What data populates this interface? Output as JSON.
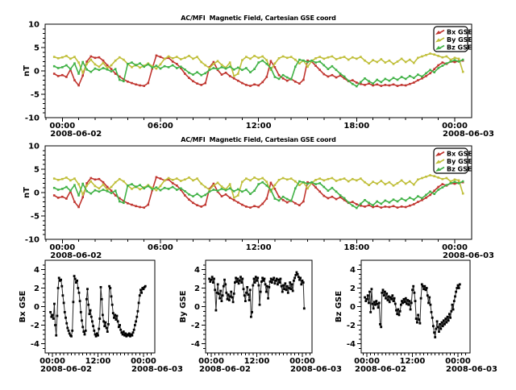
{
  "window": {
    "background": "#ffffff",
    "plot_background": "#ffffff",
    "axis_color": "#000000"
  },
  "chart_data": {
    "type": "line",
    "x_unit": "hours since 2008-06-02 00:00",
    "x_start_hours": -0.5,
    "x_step_hours": 0.25,
    "n_points": 101,
    "legend": [
      {
        "label": "Bx GSE",
        "color": "#c0352f",
        "marker": "arrow-icon"
      },
      {
        "label": "By GSE",
        "color": "#c0bf3a",
        "marker": "arrow-icon"
      },
      {
        "label": "Bz GSE",
        "color": "#41b247",
        "marker": "arrow-icon"
      }
    ],
    "series": [
      {
        "name": "Bx GSE",
        "color": "#c0352f",
        "values": [
          -0.6,
          -1.1,
          -0.9,
          -1.3,
          0.3,
          -2.0,
          -3.1,
          -1.0,
          2.0,
          3.1,
          2.8,
          2.9,
          2.2,
          1.2,
          0.4,
          -0.6,
          -1.2,
          -1.8,
          -2.3,
          -2.6,
          -2.9,
          -3.1,
          -3.2,
          -2.6,
          0.5,
          3.3,
          3.0,
          2.6,
          2.8,
          2.0,
          1.5,
          0.6,
          -0.6,
          -1.5,
          -2.2,
          -2.7,
          -3.0,
          -2.6,
          0.8,
          1.9,
          0.2,
          -0.8,
          -0.4,
          -1.1,
          -1.6,
          -2.1,
          -2.6,
          -3.0,
          -3.2,
          -2.9,
          -3.1,
          -2.4,
          -1.3,
          2.1,
          0.8,
          -0.9,
          -1.6,
          -2.1,
          -1.7,
          -2.3,
          -2.7,
          -1.9,
          2.2,
          2.0,
          1.1,
          0.2,
          -0.7,
          -1.2,
          -0.9,
          -1.4,
          -1.0,
          -1.6,
          -2.2,
          -2.0,
          -2.5,
          -2.8,
          -3.0,
          -2.7,
          -3.1,
          -2.9,
          -3.2,
          -3.0,
          -3.1,
          -2.9,
          -3.2,
          -3.0,
          -3.1,
          -2.8,
          -2.5,
          -2.0,
          -1.6,
          -1.1,
          -0.5,
          0.4,
          1.2,
          1.8,
          1.5,
          2.0,
          1.9,
          2.1,
          2.2
        ]
      },
      {
        "name": "By GSE",
        "color": "#c0bf3a",
        "values": [
          3.0,
          2.7,
          2.9,
          3.2,
          2.6,
          3.0,
          1.8,
          -0.4,
          1.5,
          2.4,
          1.4,
          0.9,
          1.7,
          0.6,
          1.2,
          2.2,
          2.9,
          2.4,
          1.5,
          0.8,
          1.3,
          0.7,
          1.1,
          1.6,
          1.0,
          0.5,
          1.4,
          2.6,
          3.1,
          2.7,
          3.0,
          2.5,
          2.8,
          3.2,
          2.6,
          3.0,
          1.9,
          1.2,
          0.6,
          1.5,
          2.1,
          1.3,
          0.7,
          1.8,
          -1.1,
          -0.6,
          2.3,
          3.0,
          2.6,
          3.2,
          2.8,
          3.1,
          2.3,
          0.2,
          1.6,
          2.7,
          3.1,
          2.8,
          3.0,
          2.4,
          1.6,
          2.2,
          0.9,
          2.1,
          2.7,
          3.0,
          2.6,
          2.9,
          3.1,
          2.5,
          2.8,
          3.0,
          2.4,
          2.9,
          2.6,
          3.0,
          2.2,
          1.6,
          2.3,
          1.9,
          2.5,
          1.8,
          2.2,
          1.5,
          2.0,
          2.6,
          1.9,
          2.4,
          1.7,
          2.8,
          3.1,
          3.4,
          3.7,
          3.5,
          3.2,
          2.9,
          3.1,
          2.4,
          2.8,
          2.6,
          -0.2
        ]
      },
      {
        "name": "Bz GSE",
        "color": "#41b247",
        "values": [
          1.0,
          0.6,
          0.8,
          1.2,
          0.4,
          1.6,
          -0.6,
          1.9,
          0.3,
          -0.2,
          0.5,
          0.2,
          0.6,
          0.3,
          -0.1,
          0.4,
          -1.9,
          -2.2,
          1.5,
          1.8,
          1.2,
          1.6,
          0.9,
          1.4,
          0.7,
          1.1,
          0.5,
          1.0,
          0.8,
          1.2,
          0.6,
          0.9,
          0.3,
          -0.4,
          -0.8,
          -0.3,
          -0.9,
          -0.5,
          0.2,
          0.6,
          0.4,
          0.8,
          0.5,
          0.9,
          0.3,
          0.7,
          0.2,
          0.6,
          -0.3,
          0.4,
          1.8,
          2.2,
          1.5,
          0.6,
          -1.3,
          -1.7,
          -0.9,
          -1.4,
          -1.8,
          0.9,
          2.4,
          2.2,
          1.9,
          2.2,
          1.8,
          2.0,
          1.2,
          0.4,
          1.0,
          0.2,
          -0.6,
          -1.2,
          -2.1,
          -2.8,
          -3.3,
          -2.4,
          -1.6,
          -2.2,
          -2.7,
          -1.9,
          -2.4,
          -1.7,
          -2.1,
          -1.5,
          -1.9,
          -1.3,
          -1.7,
          -1.1,
          -1.5,
          -0.8,
          -1.2,
          -0.5,
          0.2,
          -0.3,
          0.6,
          1.1,
          1.6,
          2.0,
          2.3,
          2.0,
          2.4
        ]
      }
    ],
    "panels": [
      {
        "id": "overview-top",
        "title": "AC/MFI  Magnetic Field, Cartesian GSE coord",
        "ylabel": "nT",
        "ylim": [
          -10,
          10
        ],
        "grid": false,
        "legend": true,
        "series": [
          "Bx GSE",
          "By GSE",
          "Bz GSE"
        ],
        "yticks": [
          {
            "v": -10,
            "label": "-10"
          },
          {
            "v": -5,
            "label": "-5"
          },
          {
            "v": 0,
            "label": "0"
          },
          {
            "v": 5,
            "label": "5"
          },
          {
            "v": 10,
            "label": "10"
          }
        ],
        "xticks": [
          {
            "hours": 0,
            "label": "00:00",
            "date": "2008-06-02"
          },
          {
            "hours": 6,
            "label": "06:00"
          },
          {
            "hours": 12,
            "label": "12:00"
          },
          {
            "hours": 18,
            "label": "18:00"
          },
          {
            "hours": 24,
            "label": "00:00",
            "date": "2008-06-03"
          }
        ]
      },
      {
        "id": "overview-repeat",
        "title": "AC/MFI  Magnetic Field, Cartesian GSE coord",
        "ylabel": "nT",
        "ylim": [
          -10,
          10
        ],
        "grid": false,
        "legend": true,
        "series": [
          "Bx GSE",
          "By GSE",
          "Bz GSE"
        ],
        "yticks": [
          {
            "v": -10,
            "label": "-10"
          },
          {
            "v": -5,
            "label": "-5"
          },
          {
            "v": 0,
            "label": "0"
          },
          {
            "v": 5,
            "label": "5"
          },
          {
            "v": 10,
            "label": "10"
          }
        ],
        "xticks": [
          {
            "hours": 0,
            "label": "00:00",
            "date": "2008-06-02"
          },
          {
            "hours": 6,
            "label": "06:00"
          },
          {
            "hours": 12,
            "label": "12:00"
          },
          {
            "hours": 18,
            "label": "18:00"
          },
          {
            "hours": 24,
            "label": "00:00",
            "date": "2008-06-03"
          }
        ]
      },
      {
        "id": "bx-detail",
        "title": "",
        "ylabel": "Bx GSE",
        "ylim": [
          -5,
          5
        ],
        "grid": false,
        "legend": false,
        "series": [
          "Bx GSE"
        ],
        "line_color": "#000000",
        "yticks": [
          {
            "v": -4,
            "label": "-4"
          },
          {
            "v": -2,
            "label": "-2"
          },
          {
            "v": 0,
            "label": "0"
          },
          {
            "v": 2,
            "label": "2"
          },
          {
            "v": 4,
            "label": "4"
          }
        ],
        "xticks": [
          {
            "hours": 0,
            "label": "00:00",
            "date": "2008-06-02"
          },
          {
            "hours": 12,
            "label": "12:00"
          },
          {
            "hours": 24,
            "label": "00:00",
            "date": "2008-06-03"
          }
        ]
      },
      {
        "id": "by-detail",
        "title": "",
        "ylabel": "By GSE",
        "ylim": [
          -5,
          5
        ],
        "grid": false,
        "legend": false,
        "series": [
          "By GSE"
        ],
        "line_color": "#000000",
        "yticks": [
          {
            "v": -4,
            "label": "-4"
          },
          {
            "v": -2,
            "label": "-2"
          },
          {
            "v": 0,
            "label": "0"
          },
          {
            "v": 2,
            "label": "2"
          },
          {
            "v": 4,
            "label": "4"
          }
        ],
        "xticks": [
          {
            "hours": 0,
            "label": "00:00",
            "date": "2008-06-02"
          },
          {
            "hours": 12,
            "label": "12:00"
          },
          {
            "hours": 24,
            "label": "00:00",
            "date": "2008-06-03"
          }
        ]
      },
      {
        "id": "bz-detail",
        "title": "",
        "ylabel": "Bz GSE",
        "ylim": [
          -5,
          5
        ],
        "grid": false,
        "legend": false,
        "series": [
          "Bz GSE"
        ],
        "line_color": "#000000",
        "yticks": [
          {
            "v": -4,
            "label": "-4"
          },
          {
            "v": -2,
            "label": "-2"
          },
          {
            "v": 0,
            "label": "0"
          },
          {
            "v": 2,
            "label": "2"
          },
          {
            "v": 4,
            "label": "4"
          }
        ],
        "xticks": [
          {
            "hours": 0,
            "label": "00:00",
            "date": "2008-06-02"
          },
          {
            "hours": 12,
            "label": "12:00"
          },
          {
            "hours": 24,
            "label": "00:00",
            "date": "2008-06-03"
          }
        ]
      }
    ]
  }
}
